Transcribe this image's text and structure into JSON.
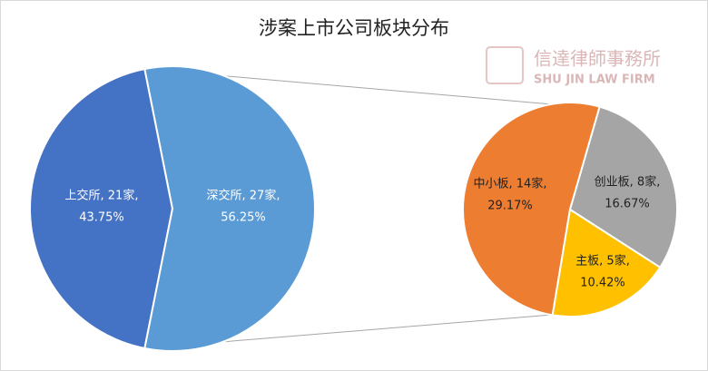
{
  "chart_data": {
    "type": "pie-of-pie",
    "title": "涉案上市公司板块分布",
    "watermark": {
      "text": "信達律師事務所",
      "subtext": "SHU JIN LAW FIRM"
    },
    "pie": {
      "categories": [
        "上交所",
        "深交所"
      ],
      "values": [
        21,
        27
      ],
      "colors": [
        "#4472c4",
        "#5b9bd5"
      ],
      "data_labels": [
        [
          "上交所, 21家,",
          "43.75%"
        ],
        [
          "深交所, 27家,",
          "56.25%"
        ]
      ]
    },
    "secondary": {
      "categories": [
        "中小板",
        "创业板",
        "主板"
      ],
      "values": [
        14,
        8,
        5
      ],
      "colors": [
        "#ed7d31",
        "#a5a5a5",
        "#ffc000"
      ],
      "data_labels": [
        [
          "中小板, 14家,",
          "29.17%"
        ],
        [
          "创业板, 8家,",
          "16.67%"
        ],
        [
          "主板, 5家,",
          "10.42%"
        ]
      ]
    }
  }
}
